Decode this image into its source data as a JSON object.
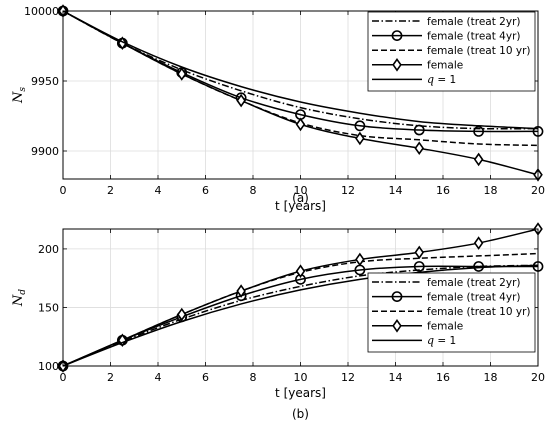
{
  "chart_data": [
    {
      "type": "line",
      "caption": "(a)",
      "xlabel": "t [years]",
      "ylabel": "N",
      "ylabel_sub": "s",
      "xlim": [
        0,
        20
      ],
      "ylim": [
        9880,
        10000
      ],
      "xticks": [
        0,
        2,
        4,
        6,
        8,
        10,
        12,
        14,
        16,
        18,
        20
      ],
      "yticks": [
        9900,
        9950,
        10000
      ],
      "legend_position": "top-right",
      "series": [
        {
          "name": "female (treat 2yr)",
          "style": "dashdot",
          "marker": "none",
          "x": [
            0,
            2.5,
            5,
            7.5,
            10,
            12.5,
            15,
            17.5,
            20
          ],
          "y": [
            10000,
            9977,
            9958,
            9943,
            9931,
            9923,
            9918,
            9916,
            9916
          ]
        },
        {
          "name": "female (treat 4yr)",
          "style": "solid",
          "marker": "circle",
          "x": [
            0,
            2.5,
            5,
            7.5,
            10,
            12.5,
            15,
            17.5,
            20
          ],
          "y": [
            10000,
            9977,
            9956,
            9938,
            9926,
            9918,
            9915,
            9914,
            9914
          ]
        },
        {
          "name": "female (treat 10 yr)",
          "style": "dashed",
          "marker": "none",
          "x": [
            0,
            2.5,
            5,
            7.5,
            10,
            12.5,
            15,
            17.5,
            20
          ],
          "y": [
            10000,
            9977,
            9955,
            9936,
            9920,
            9911,
            9908,
            9905,
            9904
          ]
        },
        {
          "name": "female",
          "style": "solid",
          "marker": "diamond",
          "x": [
            0,
            2.5,
            5,
            7.5,
            10,
            12.5,
            15,
            17.5,
            20
          ],
          "y": [
            10000,
            9977,
            9955,
            9936,
            9919,
            9909,
            9902,
            9894,
            9883
          ]
        },
        {
          "name": "q = 1",
          "name_prefix": "q",
          "name_suffix": " = 1",
          "style": "solid",
          "marker": "none",
          "x": [
            0,
            2.5,
            5,
            7.5,
            10,
            12.5,
            15,
            17.5,
            20
          ],
          "y": [
            10000,
            9978,
            9960,
            9946,
            9935,
            9927,
            9921,
            9918,
            9916
          ]
        }
      ]
    },
    {
      "type": "line",
      "caption": "(b)",
      "xlabel": "t [years]",
      "ylabel": "N",
      "ylabel_sub": "d",
      "xlim": [
        0,
        20
      ],
      "ylim": [
        100,
        217
      ],
      "xticks": [
        0,
        2,
        4,
        6,
        8,
        10,
        12,
        14,
        16,
        18,
        20
      ],
      "yticks": [
        100,
        150,
        200
      ],
      "legend_position": "bottom-right",
      "series": [
        {
          "name": "female (treat 2yr)",
          "style": "dashdot",
          "marker": "none",
          "x": [
            0,
            2.5,
            5,
            7.5,
            10,
            12.5,
            15,
            17.5,
            20
          ],
          "y": [
            100,
            121,
            140,
            156,
            168,
            177,
            182,
            185,
            186
          ]
        },
        {
          "name": "female (treat 4yr)",
          "style": "solid",
          "marker": "circle",
          "x": [
            0,
            2.5,
            5,
            7.5,
            10,
            12.5,
            15,
            17.5,
            20
          ],
          "y": [
            100,
            122,
            142,
            160,
            174,
            182,
            185,
            185,
            185
          ]
        },
        {
          "name": "female (treat 10 yr)",
          "style": "dashed",
          "marker": "none",
          "x": [
            0,
            2.5,
            5,
            7.5,
            10,
            12.5,
            15,
            17.5,
            20
          ],
          "y": [
            100,
            122,
            144,
            164,
            180,
            189,
            192,
            194,
            196
          ]
        },
        {
          "name": "female",
          "style": "solid",
          "marker": "diamond",
          "x": [
            0,
            2.5,
            5,
            7.5,
            10,
            12.5,
            15,
            17.5,
            20
          ],
          "y": [
            100,
            122,
            144,
            164,
            181,
            191,
            197,
            205,
            217
          ]
        },
        {
          "name": "q = 1",
          "name_prefix": "q",
          "name_suffix": " = 1",
          "style": "solid",
          "marker": "none",
          "x": [
            0,
            2.5,
            5,
            7.5,
            10,
            12.5,
            15,
            17.5,
            20
          ],
          "y": [
            100,
            120,
            138,
            153,
            165,
            174,
            180,
            184,
            186
          ]
        }
      ]
    }
  ]
}
